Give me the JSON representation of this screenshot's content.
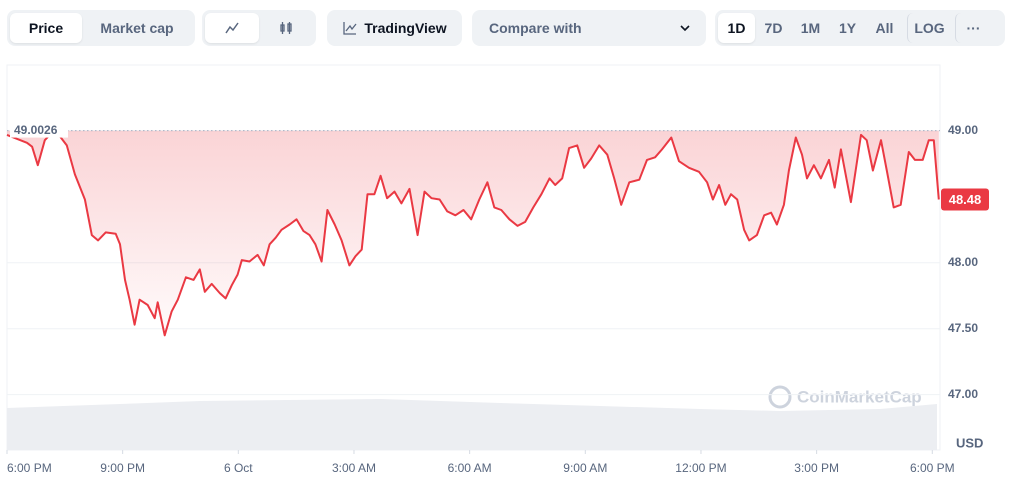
{
  "toolbar": {
    "tabs": [
      "Price",
      "Market cap"
    ],
    "tradingview": "TradingView",
    "compare": "Compare with",
    "ranges": [
      "1D",
      "7D",
      "1M",
      "1Y",
      "All",
      "LOG"
    ],
    "more": "···"
  },
  "chart_data": {
    "type": "line",
    "color": "#ea3943",
    "x": [
      0.0,
      0.52,
      0.65,
      0.8,
      0.98,
      1.24,
      1.55,
      1.76,
      2.02,
      2.2,
      2.36,
      2.56,
      2.82,
      2.93,
      3.06,
      3.18,
      3.31,
      3.44,
      3.65,
      3.83,
      3.91,
      4.09,
      4.27,
      4.43,
      4.64,
      4.84,
      5.0,
      5.13,
      5.31,
      5.52,
      5.67,
      5.83,
      5.98,
      6.09,
      6.29,
      6.5,
      6.66,
      6.81,
      6.97,
      7.12,
      7.33,
      7.51,
      7.69,
      7.85,
      8.0,
      8.16,
      8.31,
      8.5,
      8.68,
      8.88,
      9.04,
      9.2,
      9.35,
      9.53,
      9.69,
      9.86,
      10.05,
      10.23,
      10.44,
      10.65,
      10.83,
      11.01,
      11.22,
      11.42,
      11.63,
      11.84,
      12.04,
      12.25,
      12.46,
      12.64,
      12.82,
      13.03,
      13.24,
      13.44,
      13.65,
      13.86,
      14.07,
      14.22,
      14.4,
      14.58,
      14.79,
      14.97,
      15.15,
      15.36,
      15.57,
      15.75,
      15.93,
      16.14,
      16.4,
      16.6,
      16.81,
      16.99,
      17.23,
      17.43,
      17.69,
      17.95,
      18.16,
      18.31,
      18.47,
      18.63,
      18.78,
      18.94,
      19.12,
      19.25,
      19.45,
      19.64,
      19.82,
      19.97,
      20.15,
      20.28,
      20.46,
      20.62,
      20.75,
      20.93,
      21.11,
      21.32,
      21.47,
      21.63,
      21.89,
      22.15,
      22.3,
      22.46,
      22.67,
      22.82,
      23.0,
      23.18,
      23.39,
      23.55,
      23.75,
      23.91,
      24.04,
      24.17
    ],
    "values": [
      48.97,
      48.91,
      48.88,
      48.74,
      48.93,
      49.01,
      48.89,
      48.67,
      48.48,
      48.21,
      48.17,
      48.23,
      48.22,
      48.14,
      47.87,
      47.72,
      47.53,
      47.72,
      47.68,
      47.58,
      47.7,
      47.45,
      47.63,
      47.72,
      47.89,
      47.87,
      47.95,
      47.78,
      47.84,
      47.77,
      47.73,
      47.83,
      47.91,
      48.02,
      48.01,
      48.06,
      47.98,
      48.14,
      48.19,
      48.25,
      48.29,
      48.33,
      48.24,
      48.21,
      48.14,
      48.01,
      48.4,
      48.29,
      48.17,
      47.98,
      48.05,
      48.1,
      48.52,
      48.52,
      48.66,
      48.49,
      48.54,
      48.45,
      48.56,
      48.21,
      48.54,
      48.49,
      48.48,
      48.39,
      48.36,
      48.4,
      48.33,
      48.48,
      48.61,
      48.42,
      48.4,
      48.33,
      48.28,
      48.31,
      48.42,
      48.52,
      48.64,
      48.59,
      48.64,
      48.87,
      48.89,
      48.72,
      48.79,
      48.89,
      48.82,
      48.64,
      48.44,
      48.61,
      48.63,
      48.78,
      48.8,
      48.86,
      48.95,
      48.77,
      48.72,
      48.69,
      48.61,
      48.48,
      48.59,
      48.44,
      48.52,
      48.48,
      48.25,
      48.17,
      48.21,
      48.36,
      48.38,
      48.29,
      48.44,
      48.7,
      48.95,
      48.82,
      48.64,
      48.74,
      48.64,
      48.78,
      48.57,
      48.86,
      48.46,
      48.97,
      48.93,
      48.7,
      48.93,
      48.7,
      48.42,
      48.44,
      48.84,
      48.78,
      48.78,
      48.93,
      48.93,
      48.48
    ],
    "xlim": [
      0,
      24.2
    ],
    "xticks": [
      {
        "value": 0,
        "label": "6:00 PM"
      },
      {
        "value": 3,
        "label": "9:00 PM"
      },
      {
        "value": 6,
        "label": "6 Oct"
      },
      {
        "value": 9,
        "label": "3:00 AM"
      },
      {
        "value": 12,
        "label": "6:00 AM"
      },
      {
        "value": 15,
        "label": "9:00 AM"
      },
      {
        "value": 18,
        "label": "12:00 PM"
      },
      {
        "value": 21,
        "label": "3:00 PM"
      },
      {
        "value": 24,
        "label": "6:00 PM"
      }
    ],
    "ylim": [
      46.58,
      49.5
    ],
    "yticks": [
      {
        "value": 47,
        "label": "47.00"
      },
      {
        "value": 47.5,
        "label": "47.50"
      },
      {
        "value": 48,
        "label": "48.00"
      },
      {
        "value": 49,
        "label": "49.00"
      }
    ],
    "grid": true,
    "reference": 49.0026,
    "current_value": 48.48,
    "currency": "USD",
    "watermark": "CoinMarketCap"
  }
}
